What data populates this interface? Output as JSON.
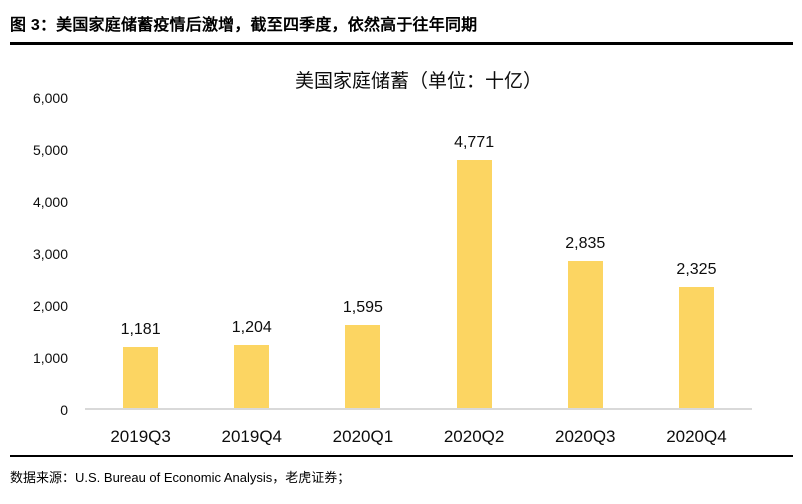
{
  "page": {
    "title": "图 3：美国家庭储蓄疫情后激增，截至四季度，依然高于往年同期",
    "source_note": "数据来源：U.S. Bureau of Economic Analysis，老虎证券；"
  },
  "chart_data": {
    "type": "bar",
    "title": "美国家庭储蓄（单位：十亿）",
    "categories": [
      "2019Q3",
      "2019Q4",
      "2020Q1",
      "2020Q2",
      "2020Q3",
      "2020Q4"
    ],
    "values": [
      1181,
      1204,
      1595,
      4771,
      2835,
      2325
    ],
    "value_labels": [
      "1,181",
      "1,204",
      "1,595",
      "4,771",
      "2,835",
      "2,325"
    ],
    "xlabel": "",
    "ylabel": "",
    "ylim": [
      0,
      6000
    ],
    "yticks": [
      0,
      1000,
      2000,
      3000,
      4000,
      5000,
      6000
    ],
    "ytick_labels": [
      "0",
      "1,000",
      "2,000",
      "3,000",
      "4,000",
      "5,000",
      "6,000"
    ],
    "grid": false,
    "legend": "none",
    "colors": {
      "bar": "#FCD562",
      "axis_line": "#D9D9D9",
      "text": "#0D0D0D",
      "rule": "#000000"
    }
  }
}
